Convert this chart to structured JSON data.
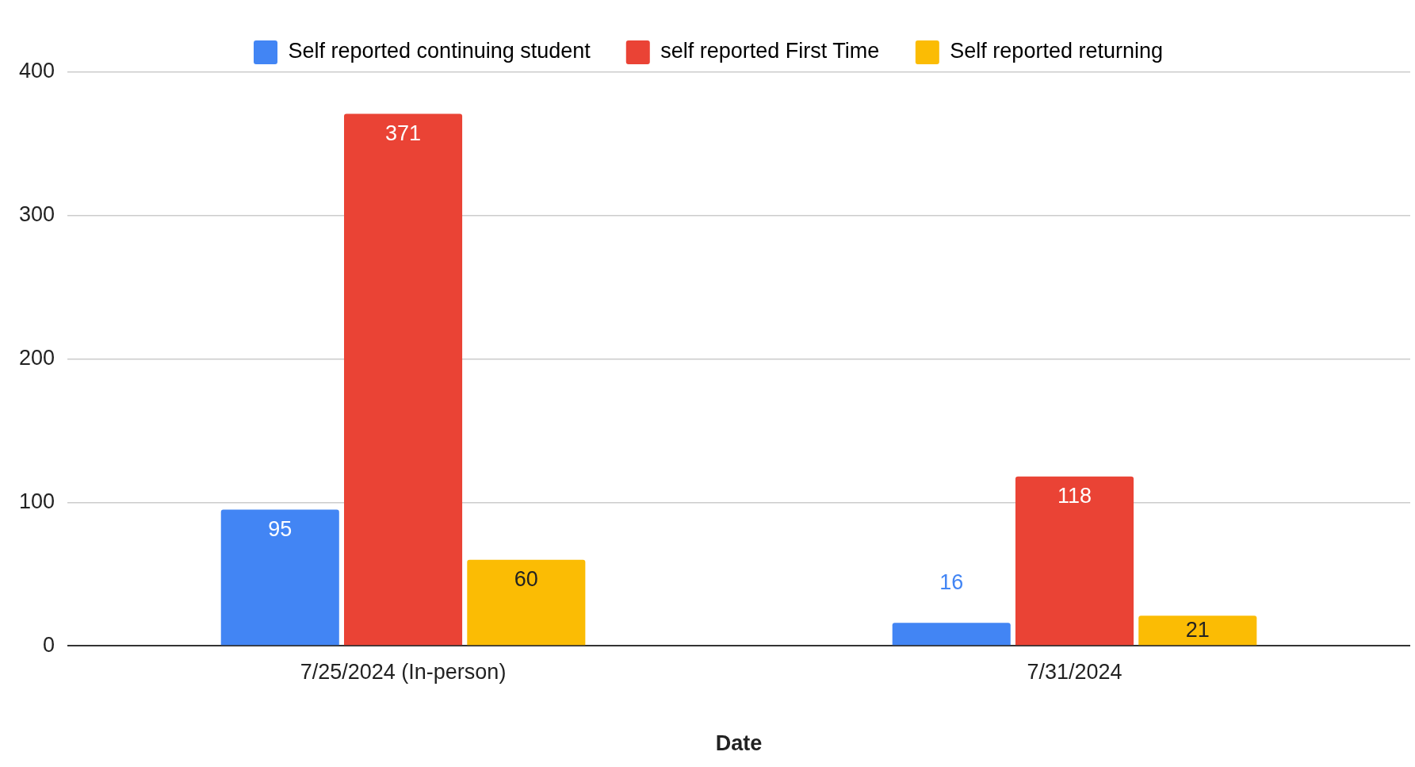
{
  "chart_data": {
    "type": "bar",
    "xlabel": "Date",
    "categories": [
      "7/25/2024 (In-person)",
      "7/31/2024"
    ],
    "series": [
      {
        "name": "Self reported continuing student",
        "color": "#4285f4",
        "values": [
          95,
          16
        ]
      },
      {
        "name": "self reported First Time",
        "color": "#ea4335",
        "values": [
          371,
          118
        ]
      },
      {
        "name": "Self reported returning",
        "color": "#fbbc04",
        "values": [
          60,
          21
        ]
      }
    ],
    "ylim": [
      0,
      400
    ],
    "yticks": [
      0,
      100,
      200,
      300,
      400
    ],
    "grid": "y",
    "legend": "top",
    "data_labels": true
  }
}
